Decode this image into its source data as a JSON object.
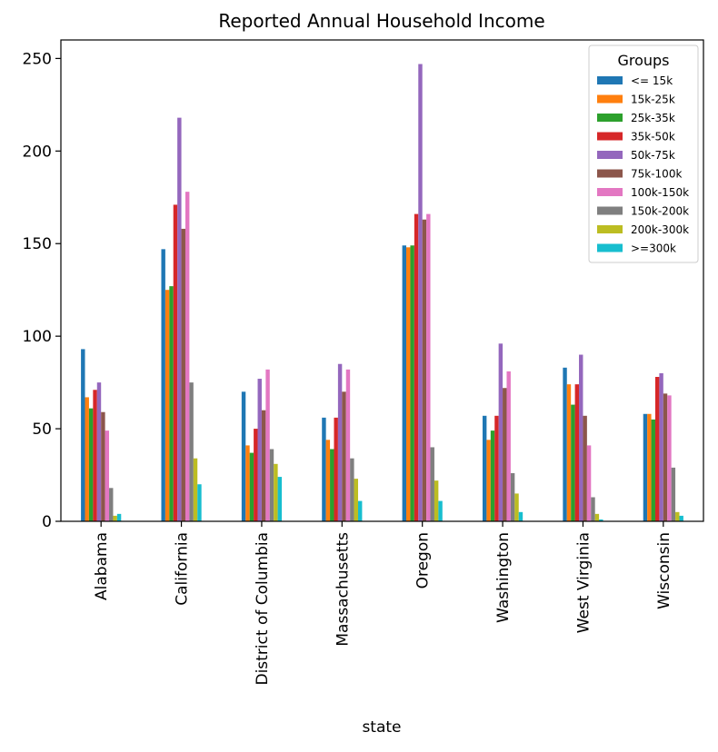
{
  "chart_data": {
    "type": "bar",
    "title": "Reported Annual Household Income",
    "xlabel": "state",
    "ylabel": "",
    "ylim": [
      0,
      260
    ],
    "yticks": [
      0,
      50,
      100,
      150,
      200,
      250
    ],
    "grid": false,
    "legend": {
      "title": "Groups",
      "placement": "top-right"
    },
    "categories": [
      "Alabama",
      "California",
      "District of Columbia",
      "Massachusetts",
      "Oregon",
      "Washington",
      "West Virginia",
      "Wisconsin"
    ],
    "series": [
      {
        "name": "<= 15k",
        "color": "#1f77b4",
        "values": [
          93,
          147,
          70,
          56,
          149,
          57,
          83,
          58
        ]
      },
      {
        "name": "15k-25k",
        "color": "#ff7f0e",
        "values": [
          67,
          125,
          41,
          44,
          148,
          44,
          74,
          58
        ]
      },
      {
        "name": "25k-35k",
        "color": "#2ca02c",
        "values": [
          61,
          127,
          37,
          39,
          149,
          49,
          63,
          55
        ]
      },
      {
        "name": "35k-50k",
        "color": "#d62728",
        "values": [
          71,
          171,
          50,
          56,
          166,
          57,
          74,
          78
        ]
      },
      {
        "name": "50k-75k",
        "color": "#9467bd",
        "values": [
          75,
          218,
          77,
          85,
          247,
          96,
          90,
          80
        ]
      },
      {
        "name": "75k-100k",
        "color": "#8c564b",
        "values": [
          59,
          158,
          60,
          70,
          163,
          72,
          57,
          69
        ]
      },
      {
        "name": "100k-150k",
        "color": "#e377c2",
        "values": [
          49,
          178,
          82,
          82,
          166,
          81,
          41,
          68
        ]
      },
      {
        "name": "150k-200k",
        "color": "#7f7f7f",
        "values": [
          18,
          75,
          39,
          34,
          40,
          26,
          13,
          29
        ]
      },
      {
        "name": "200k-300k",
        "color": "#bcbd22",
        "values": [
          3,
          34,
          31,
          23,
          22,
          15,
          4,
          5
        ]
      },
      {
        "name": ">=300k",
        "color": "#17becf",
        "values": [
          4,
          20,
          24,
          11,
          11,
          5,
          1,
          3
        ]
      }
    ]
  }
}
